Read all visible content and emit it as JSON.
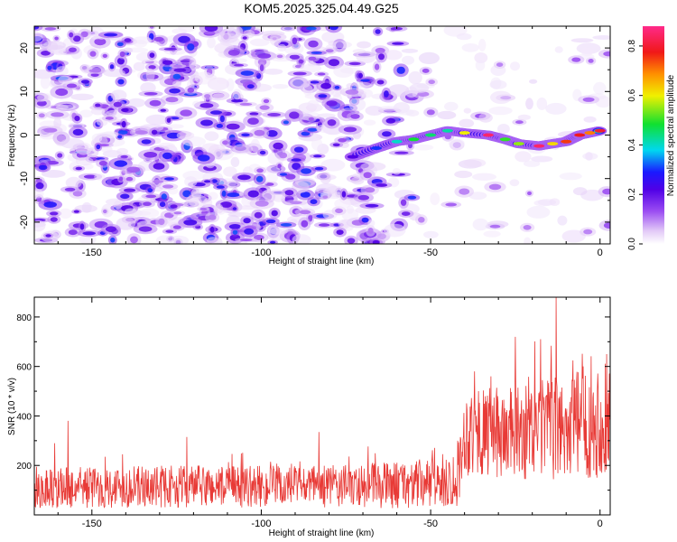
{
  "title": "KOM5.2025.325.04.49.G25",
  "colors": {
    "snr_line": "#e83a36",
    "axis": "#000000",
    "background": "#ffffff"
  },
  "chart_data": [
    {
      "type": "heatmap",
      "name": "spectrogram",
      "xlabel": "Height of straight line (km)",
      "ylabel": "Frequency (Hz)",
      "xlim": [
        -167,
        3
      ],
      "ylim": [
        -25,
        25
      ],
      "xticks": [
        -150,
        -100,
        -50,
        0
      ],
      "yticks": [
        -20,
        -10,
        0,
        10,
        20
      ],
      "colorbar": {
        "label": "Normalized spectral amplitude",
        "range": [
          0.0,
          0.88
        ],
        "ticks": [
          0.0,
          0.2,
          0.4,
          0.6,
          0.8
        ],
        "colormap": "rainbow (white-lavender-violet-blue-cyan-green-yellow-orange-red-magenta)"
      },
      "signal_track": [
        {
          "x": -73,
          "freq": -5,
          "amp": 0.22
        },
        {
          "x": -66,
          "freq": -3,
          "amp": 0.3
        },
        {
          "x": -60,
          "freq": -1.5,
          "amp": 0.4
        },
        {
          "x": -55,
          "freq": -1,
          "amp": 0.48
        },
        {
          "x": -50,
          "freq": 0,
          "amp": 0.45
        },
        {
          "x": -45,
          "freq": 1,
          "amp": 0.42
        },
        {
          "x": -40,
          "freq": 0.5,
          "amp": 0.6
        },
        {
          "x": -33,
          "freq": 0,
          "amp": 0.85
        },
        {
          "x": -28,
          "freq": -1,
          "amp": 0.5
        },
        {
          "x": -24,
          "freq": -2,
          "amp": 0.55
        },
        {
          "x": -18,
          "freq": -2.5,
          "amp": 0.85
        },
        {
          "x": -14,
          "freq": -2,
          "amp": 0.62
        },
        {
          "x": -10,
          "freq": -1.5,
          "amp": 0.75
        },
        {
          "x": -6,
          "freq": 0,
          "amp": 0.78
        },
        {
          "x": -3,
          "freq": 0.5,
          "amp": 0.7
        },
        {
          "x": 0,
          "freq": 1,
          "amp": 0.8
        }
      ]
    },
    {
      "type": "line",
      "name": "snr",
      "xlabel": "Height of straight line (km)",
      "ylabel": "SNR (10 * v/v)",
      "xlim": [
        -167,
        3
      ],
      "ylim": [
        0,
        880
      ],
      "xticks": [
        -150,
        -100,
        -50,
        0
      ],
      "yticks": [
        200,
        400,
        600,
        800
      ],
      "envelope": [
        {
          "x": -167,
          "mean": 110,
          "spread": 100
        },
        {
          "x": -120,
          "mean": 115,
          "spread": 100
        },
        {
          "x": -80,
          "mean": 115,
          "spread": 100
        },
        {
          "x": -50,
          "mean": 125,
          "spread": 120
        },
        {
          "x": -42,
          "mean": 150,
          "spread": 140
        },
        {
          "x": -40,
          "mean": 330,
          "spread": 200
        },
        {
          "x": -30,
          "mean": 330,
          "spread": 220
        },
        {
          "x": -20,
          "mean": 330,
          "spread": 230
        },
        {
          "x": 3,
          "mean": 390,
          "spread": 280
        }
      ],
      "peaks": [
        {
          "x": -161,
          "y": 290
        },
        {
          "x": -157,
          "y": 380
        },
        {
          "x": -141,
          "y": 245
        },
        {
          "x": -122,
          "y": 315
        },
        {
          "x": -83,
          "y": 335
        },
        {
          "x": -42,
          "y": 300
        },
        {
          "x": -37,
          "y": 580
        },
        {
          "x": -25,
          "y": 720
        },
        {
          "x": -17,
          "y": 545
        },
        {
          "x": -13,
          "y": 880
        },
        {
          "x": -5,
          "y": 600
        },
        {
          "x": 2,
          "y": 650
        }
      ]
    }
  ]
}
